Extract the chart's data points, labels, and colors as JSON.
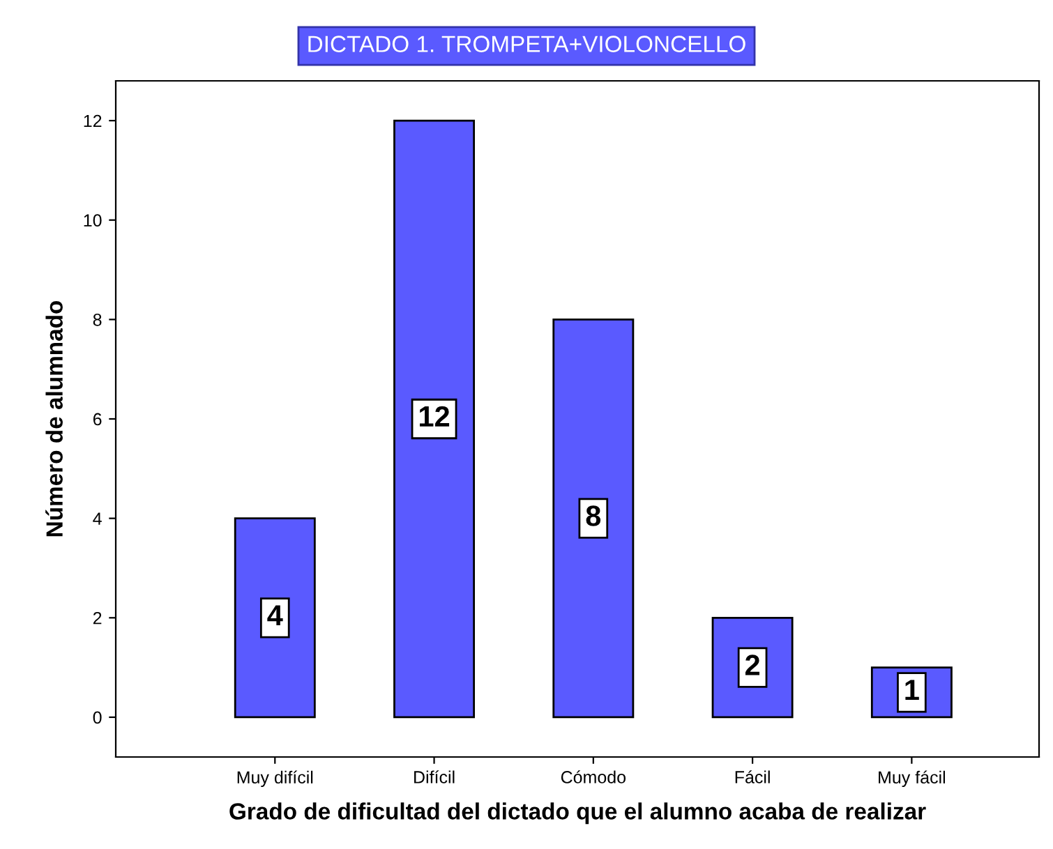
{
  "chart_data": {
    "type": "bar",
    "title": "DICTADO 1. TROMPETA+VIOLONCELLO",
    "xlabel": "Grado de dificultad del dictado que el alumno acaba de realizar",
    "ylabel": "Número de alumnado",
    "categories": [
      "Muy difícil",
      "Difícil",
      "Cómodo",
      "Fácil",
      "Muy fácil"
    ],
    "values": [
      4,
      12,
      8,
      2,
      1
    ],
    "color": "#5a5aff",
    "ylim": [
      -0.8,
      12.8
    ],
    "yticks": [
      0,
      2,
      4,
      6,
      8,
      10,
      12
    ],
    "grid": false,
    "data_labels": true
  }
}
